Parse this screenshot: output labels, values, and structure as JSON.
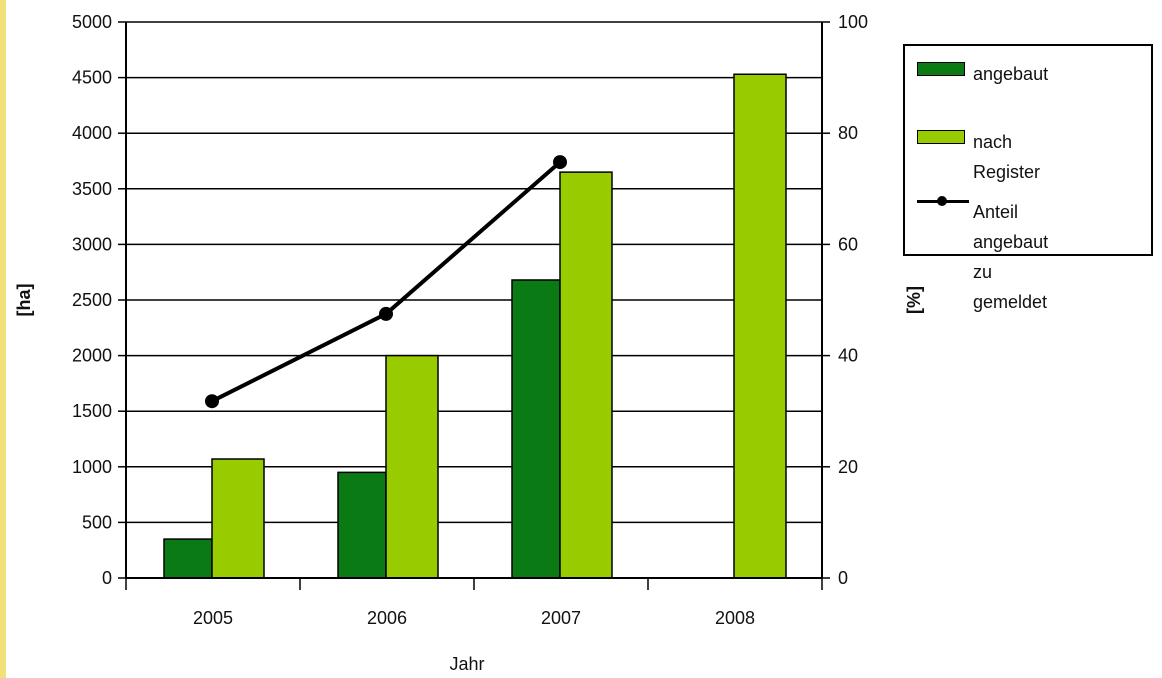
{
  "chart_data": {
    "type": "bar",
    "categories": [
      "2005",
      "2006",
      "2007",
      "2008"
    ],
    "xlabel": "Jahr",
    "ylabel": "[ha]",
    "y2label": "[%]",
    "ylim": [
      0,
      5000
    ],
    "y2lim": [
      0,
      100
    ],
    "yticks": [
      "0",
      "500",
      "1000",
      "1500",
      "2000",
      "2500",
      "3000",
      "3500",
      "4000",
      "4500",
      "5000"
    ],
    "y2ticks": [
      "0",
      "20",
      "40",
      "60",
      "80",
      "100"
    ],
    "grid": true,
    "legend_position": "right",
    "series": [
      {
        "name": "angebaut",
        "type": "bar",
        "axis": "left",
        "color": "#0a7a14",
        "values": [
          350,
          950,
          2680,
          null
        ]
      },
      {
        "name": "nach Register",
        "type": "bar",
        "axis": "left",
        "color": "#99cc00",
        "values": [
          1070,
          2000,
          3650,
          4530
        ]
      },
      {
        "name": "Anteil angebaut\nzu gemeldet",
        "type": "line",
        "axis": "right",
        "color": "#000000",
        "values": [
          31.8,
          47.5,
          74.8,
          null
        ]
      }
    ]
  }
}
